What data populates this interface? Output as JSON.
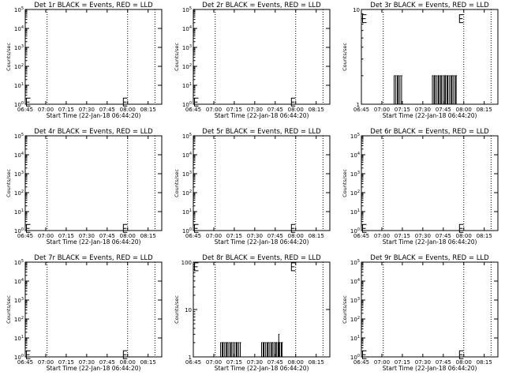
{
  "layout": {
    "columns": 3,
    "rows": 3
  },
  "x_tick_labels": [
    "06:45",
    "07:00",
    "07:15",
    "07:30",
    "07:45",
    "08:00",
    "08:15"
  ],
  "xlabel": "Start Time (22-Jan-18 06:44:20)",
  "ylabel": "Counts/sec",
  "chart_data": [
    {
      "type": "line",
      "title": "Det 1r BLACK = Events, RED = LLD",
      "x_minutes": [
        0,
        100
      ],
      "ylim": [
        1,
        100000
      ],
      "ylog": true,
      "ytick_labels": [
        "10^0",
        "10^1",
        "10^2",
        "10^3",
        "10^4",
        "10^5"
      ],
      "dotted_x": [
        16,
        75,
        95
      ],
      "e_markers": [
        {
          "x": 0,
          "y": 1.3
        },
        {
          "x": 71,
          "y": 1.3
        }
      ],
      "series": [
        {
          "color": "#000000",
          "x": [],
          "y": []
        }
      ]
    },
    {
      "type": "line",
      "title": "Det 2r BLACK = Events, RED = LLD",
      "x_minutes": [
        0,
        100
      ],
      "ylim": [
        1,
        100000
      ],
      "ylog": true,
      "ytick_labels": [
        "10^0",
        "10^1",
        "10^2",
        "10^3",
        "10^4",
        "10^5"
      ],
      "dotted_x": [
        16,
        75,
        95
      ],
      "e_markers": [
        {
          "x": 0,
          "y": 1.3
        },
        {
          "x": 71,
          "y": 1.3
        }
      ],
      "series": [
        {
          "color": "#000000",
          "x": [],
          "y": []
        }
      ]
    },
    {
      "type": "line",
      "title": "Det 3r BLACK = Events, RED = LLD",
      "x_minutes": [
        0,
        100
      ],
      "ylim": [
        1,
        10
      ],
      "ylog": true,
      "ytick_labels": [
        "1",
        "10"
      ],
      "dotted_x": [
        16,
        75,
        95
      ],
      "e_markers": [
        {
          "x": 0,
          "y": 8
        },
        {
          "x": 71,
          "y": 8
        }
      ],
      "series": [
        {
          "color": "#000000",
          "x": [
            24,
            24.6,
            25.2,
            25.8,
            26.4,
            27,
            27.6,
            28.2,
            28.8,
            29.4,
            30,
            52,
            52.6,
            53.2,
            53.8,
            54.4,
            55,
            55.6,
            56.2,
            56.8,
            57.4,
            58,
            58.6,
            59.2,
            59.8,
            60.4,
            61,
            61.6,
            62.2,
            62.8,
            63.4,
            64,
            64.6,
            65.2,
            65.8,
            66.4,
            67,
            67.6,
            68.2,
            68.8,
            69.4,
            70
          ],
          "y": [
            2,
            1,
            2,
            1,
            2,
            2,
            1,
            2,
            1,
            2,
            1,
            2,
            1,
            2,
            2,
            1,
            2,
            1,
            2,
            2,
            1,
            2,
            2,
            1,
            2,
            1,
            2,
            2,
            1,
            2,
            2,
            1,
            2,
            1,
            2,
            2,
            1,
            2,
            1,
            2,
            2,
            1
          ]
        }
      ]
    },
    {
      "type": "line",
      "title": "Det 4r BLACK = Events, RED = LLD",
      "x_minutes": [
        0,
        100
      ],
      "ylim": [
        1,
        100000
      ],
      "ylog": true,
      "ytick_labels": [
        "10^0",
        "10^1",
        "10^2",
        "10^3",
        "10^4",
        "10^5"
      ],
      "dotted_x": [
        16,
        75,
        95
      ],
      "e_markers": [
        {
          "x": 0,
          "y": 1.3
        },
        {
          "x": 71,
          "y": 1.3
        }
      ],
      "series": [
        {
          "color": "#000000",
          "x": [],
          "y": []
        }
      ]
    },
    {
      "type": "line",
      "title": "Det 5r BLACK = Events, RED = LLD",
      "x_minutes": [
        0,
        100
      ],
      "ylim": [
        1,
        100000
      ],
      "ylog": true,
      "ytick_labels": [
        "10^0",
        "10^1",
        "10^2",
        "10^3",
        "10^4",
        "10^5"
      ],
      "dotted_x": [
        16,
        75,
        95
      ],
      "e_markers": [
        {
          "x": 0,
          "y": 1.3
        },
        {
          "x": 71,
          "y": 1.3
        }
      ],
      "series": [
        {
          "color": "#000000",
          "x": [],
          "y": []
        }
      ]
    },
    {
      "type": "line",
      "title": "Det 6r BLACK = Events, RED = LLD",
      "x_minutes": [
        0,
        100
      ],
      "ylim": [
        1,
        100000
      ],
      "ylog": true,
      "ytick_labels": [
        "10^0",
        "10^1",
        "10^2",
        "10^3",
        "10^4",
        "10^5"
      ],
      "dotted_x": [
        16,
        75,
        95
      ],
      "e_markers": [
        {
          "x": 0,
          "y": 1.3
        },
        {
          "x": 71,
          "y": 1.3
        }
      ],
      "series": [
        {
          "color": "#000000",
          "x": [],
          "y": []
        }
      ]
    },
    {
      "type": "line",
      "title": "Det 7r BLACK = Events, RED = LLD",
      "x_minutes": [
        0,
        100
      ],
      "ylim": [
        1,
        100000
      ],
      "ylog": true,
      "ytick_labels": [
        "10^0",
        "10^1",
        "10^2",
        "10^3",
        "10^4",
        "10^5"
      ],
      "dotted_x": [
        16,
        75,
        95
      ],
      "e_markers": [
        {
          "x": 0,
          "y": 1.3
        },
        {
          "x": 71,
          "y": 1.3
        }
      ],
      "series": [
        {
          "color": "#000000",
          "x": [],
          "y": []
        }
      ]
    },
    {
      "type": "line",
      "title": "Det 8r BLACK = Events, RED = LLD",
      "x_minutes": [
        0,
        100
      ],
      "ylim": [
        1,
        100
      ],
      "ylog": true,
      "ytick_labels": [
        "1",
        "10",
        "100"
      ],
      "dotted_x": [
        16,
        75,
        95
      ],
      "e_markers": [
        {
          "x": 0,
          "y": 80
        },
        {
          "x": 71,
          "y": 80
        }
      ],
      "series": [
        {
          "color": "#000000",
          "x": [
            20,
            20.6,
            21.2,
            21.8,
            22.4,
            23,
            23.6,
            24.2,
            24.8,
            25.4,
            26,
            26.6,
            27.2,
            27.8,
            28.4,
            29,
            29.6,
            30.2,
            30.8,
            31.4,
            32,
            32.6,
            33.2,
            33.8,
            34.4,
            35,
            50,
            50.6,
            51.2,
            51.8,
            52.4,
            53,
            53.6,
            54.2,
            54.8,
            55.4,
            56,
            56.6,
            57.2,
            57.8,
            58.4,
            59,
            59.6,
            60.2,
            60.8,
            61.4,
            62,
            62.6,
            63.2,
            63.8,
            64.4,
            65,
            65.6
          ],
          "y": [
            2,
            1,
            2,
            2,
            1,
            2,
            1,
            2,
            2,
            1,
            2,
            1,
            2,
            2,
            1,
            2,
            1,
            2,
            1,
            2,
            2,
            1,
            2,
            1,
            2,
            1,
            2,
            1,
            2,
            2,
            1,
            2,
            1,
            2,
            2,
            1,
            2,
            1,
            2,
            2,
            1,
            2,
            1,
            2,
            2,
            1,
            2,
            3,
            2,
            1,
            2,
            2,
            1
          ]
        }
      ]
    },
    {
      "type": "line",
      "title": "Det 9r BLACK = Events, RED = LLD",
      "x_minutes": [
        0,
        100
      ],
      "ylim": [
        1,
        100000
      ],
      "ylog": true,
      "ytick_labels": [
        "10^0",
        "10^1",
        "10^2",
        "10^3",
        "10^4",
        "10^5"
      ],
      "dotted_x": [
        16,
        75,
        95
      ],
      "e_markers": [
        {
          "x": 0,
          "y": 1.3
        },
        {
          "x": 71,
          "y": 1.3
        }
      ],
      "series": [
        {
          "color": "#000000",
          "x": [],
          "y": []
        }
      ]
    }
  ]
}
